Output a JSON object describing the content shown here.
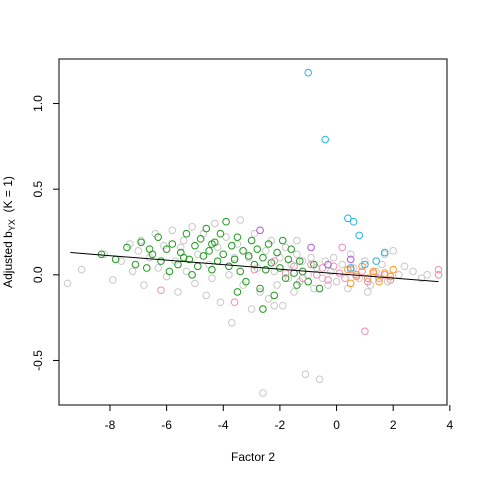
{
  "chart_data": {
    "type": "scatter",
    "xlabel": "Factor 2",
    "ylabel_main": "Adjusted b",
    "ylabel_sub": "YX",
    "ylabel_tail": "  (K = 1)",
    "xlim": [
      -9.8,
      3.9
    ],
    "ylim": [
      -0.76,
      1.26
    ],
    "x_ticks": [
      -8,
      -6,
      -4,
      -2,
      0,
      2,
      4
    ],
    "y_ticks": [
      -0.5,
      0.0,
      0.5,
      1.0
    ],
    "x_tick_labels": [
      "-8",
      "-6",
      "-4",
      "-2",
      "0",
      "2",
      "4"
    ],
    "y_tick_labels": [
      "-0.5",
      "0.0",
      "0.5",
      "1.0"
    ],
    "grid": false,
    "legend": "none",
    "fit_line": {
      "x": [
        -9.4,
        3.6
      ],
      "y": [
        0.13,
        -0.04
      ],
      "color": "#000000"
    },
    "series": [
      {
        "color": "#c8c8c8",
        "points": [
          [
            -9.5,
            -0.05
          ],
          [
            -9.0,
            0.03
          ],
          [
            -8.2,
            0.12
          ],
          [
            -7.9,
            -0.03
          ],
          [
            -7.6,
            0.08
          ],
          [
            -7.3,
            0.18
          ],
          [
            -7.2,
            0.02
          ],
          [
            -7.0,
            0.14
          ],
          [
            -6.8,
            -0.06
          ],
          [
            -6.6,
            0.1
          ],
          [
            -6.4,
            0.24
          ],
          [
            -6.3,
            0.04
          ],
          [
            -6.1,
            0.17
          ],
          [
            -6.0,
            -0.01
          ],
          [
            -5.8,
            0.26
          ],
          [
            -5.7,
            0.08
          ],
          [
            -5.6,
            -0.1
          ],
          [
            -5.4,
            0.2
          ],
          [
            -5.3,
            0.02
          ],
          [
            -5.1,
            0.28
          ],
          [
            -5.0,
            -0.05
          ],
          [
            -4.9,
            0.12
          ],
          [
            -4.7,
            0.24
          ],
          [
            -4.6,
            -0.12
          ],
          [
            -4.5,
            0.06
          ],
          [
            -4.3,
            0.3
          ],
          [
            -4.2,
            0.16
          ],
          [
            -4.1,
            -0.16
          ],
          [
            -3.9,
            0.22
          ],
          [
            -3.8,
            0.0
          ],
          [
            -3.7,
            -0.28
          ],
          [
            -3.5,
            0.18
          ],
          [
            -3.4,
            0.32
          ],
          [
            -3.3,
            -0.06
          ],
          [
            -3.1,
            0.1
          ],
          [
            -3.0,
            -0.2
          ],
          [
            -2.9,
            0.24
          ],
          [
            -2.8,
            0.04
          ],
          [
            -2.7,
            -0.1
          ],
          [
            -2.6,
            -0.69
          ],
          [
            -2.5,
            0.14
          ],
          [
            -2.4,
            -0.14
          ],
          [
            -2.3,
            0.2
          ],
          [
            -2.2,
            0.02
          ],
          [
            -2.1,
            -0.06
          ],
          [
            -2.0,
            0.1
          ],
          [
            -1.9,
            -0.18
          ],
          [
            -1.8,
            0.16
          ],
          [
            -1.7,
            -0.02
          ],
          [
            -1.6,
            0.06
          ],
          [
            -1.5,
            -0.1
          ],
          [
            -1.4,
            0.12
          ],
          [
            -1.3,
            -0.04
          ],
          [
            -1.2,
            0.08
          ],
          [
            -1.1,
            -0.58
          ],
          [
            -1.0,
            0.0
          ],
          [
            -0.9,
            0.1
          ],
          [
            -0.8,
            -0.08
          ],
          [
            -0.7,
            0.04
          ],
          [
            -0.6,
            -0.61
          ],
          [
            -0.5,
            -0.02
          ],
          [
            -0.4,
            0.08
          ],
          [
            -0.3,
            -0.06
          ],
          [
            -0.2,
            0.02
          ],
          [
            -0.1,
            0.1
          ],
          [
            0.0,
            -0.04
          ],
          [
            0.2,
            0.06
          ],
          [
            0.4,
            -0.08
          ],
          [
            0.6,
            0.04
          ],
          [
            0.8,
            -0.02
          ],
          [
            1.0,
            0.08
          ],
          [
            1.2,
            -0.06
          ],
          [
            1.4,
            0.02
          ],
          [
            1.6,
            0.06
          ],
          [
            1.8,
            -0.04
          ],
          [
            2.0,
            0.14
          ],
          [
            2.2,
            0.0
          ],
          [
            2.4,
            0.05
          ],
          [
            2.7,
            0.02
          ],
          [
            3.0,
            -0.02
          ],
          [
            3.2,
            0.0
          ],
          [
            -6.9,
            0.2
          ],
          [
            -5.5,
            0.16
          ],
          [
            -4.4,
            -0.02
          ],
          [
            -3.6,
            0.1
          ],
          [
            -2.2,
            -0.18
          ],
          [
            -1.4,
            0.2
          ],
          [
            0.5,
            0.12
          ],
          [
            1.1,
            -0.1
          ],
          [
            1.7,
            0.12
          ]
        ]
      },
      {
        "color": "#1e9a1e",
        "points": [
          [
            -8.3,
            0.12
          ],
          [
            -7.8,
            0.09
          ],
          [
            -7.4,
            0.16
          ],
          [
            -7.1,
            0.06
          ],
          [
            -6.9,
            0.19
          ],
          [
            -6.7,
            0.04
          ],
          [
            -6.5,
            0.12
          ],
          [
            -6.3,
            0.22
          ],
          [
            -6.2,
            0.08
          ],
          [
            -6.0,
            0.15
          ],
          [
            -5.9,
            0.02
          ],
          [
            -5.8,
            0.18
          ],
          [
            -5.6,
            0.06
          ],
          [
            -5.5,
            0.13
          ],
          [
            -5.3,
            0.24
          ],
          [
            -5.2,
            0.09
          ],
          [
            -5.1,
            0.0
          ],
          [
            -5.0,
            0.17
          ],
          [
            -4.9,
            0.05
          ],
          [
            -4.8,
            0.21
          ],
          [
            -4.7,
            0.11
          ],
          [
            -4.6,
            0.27
          ],
          [
            -4.5,
            0.14
          ],
          [
            -4.4,
            0.03
          ],
          [
            -4.3,
            0.19
          ],
          [
            -4.2,
            0.08
          ],
          [
            -4.1,
            0.24
          ],
          [
            -4.0,
            0.12
          ],
          [
            -3.9,
            0.31
          ],
          [
            -3.8,
            0.05
          ],
          [
            -3.7,
            0.17
          ],
          [
            -3.6,
            0.09
          ],
          [
            -3.5,
            0.22
          ],
          [
            -3.4,
            0.02
          ],
          [
            -3.3,
            0.14
          ],
          [
            -3.2,
            -0.04
          ],
          [
            -3.1,
            0.11
          ],
          [
            -3.0,
            0.2
          ],
          [
            -2.9,
            0.06
          ],
          [
            -2.8,
            0.15
          ],
          [
            -2.7,
            -0.08
          ],
          [
            -2.6,
            0.1
          ],
          [
            -2.5,
            0.03
          ],
          [
            -2.4,
            0.18
          ],
          [
            -2.3,
            0.07
          ],
          [
            -2.2,
            -0.12
          ],
          [
            -2.1,
            0.13
          ],
          [
            -2.0,
            0.04
          ],
          [
            -1.9,
            0.2
          ],
          [
            -1.8,
            -0.02
          ],
          [
            -1.7,
            0.09
          ],
          [
            -1.6,
            0.15
          ],
          [
            -1.5,
            0.01
          ],
          [
            -1.4,
            -0.06
          ],
          [
            -1.3,
            0.08
          ],
          [
            -1.2,
            0.02
          ],
          [
            -1.0,
            -0.04
          ],
          [
            -0.8,
            0.06
          ],
          [
            -0.6,
            -0.08
          ],
          [
            -2.6,
            -0.2
          ],
          [
            -3.5,
            -0.1
          ],
          [
            -4.4,
            0.18
          ],
          [
            -5.4,
            0.1
          ],
          [
            -6.6,
            0.15
          ]
        ]
      },
      {
        "color": "#f08cb4",
        "points": [
          [
            -6.2,
            -0.09
          ],
          [
            -3.6,
            -0.16
          ],
          [
            -2.9,
            0.03
          ],
          [
            -2.2,
            0.08
          ],
          [
            -1.8,
            0.01
          ],
          [
            -1.5,
            0.05
          ],
          [
            -1.2,
            -0.02
          ],
          [
            -0.9,
            0.06
          ],
          [
            -0.7,
            0.0
          ],
          [
            -0.5,
            0.04
          ],
          [
            -0.3,
            -0.03
          ],
          [
            -0.1,
            0.05
          ],
          [
            0.1,
            0.01
          ],
          [
            0.3,
            -0.02
          ],
          [
            0.5,
            0.03
          ],
          [
            0.7,
            -0.01
          ],
          [
            0.9,
            0.02
          ],
          [
            1.1,
            -0.04
          ],
          [
            1.3,
            0.01
          ],
          [
            1.5,
            -0.02
          ],
          [
            1.7,
            0.0
          ],
          [
            1.9,
            -0.03
          ],
          [
            0.2,
            0.16
          ],
          [
            1.0,
            -0.33
          ],
          [
            3.6,
            0.03
          ],
          [
            3.6,
            0.0
          ]
        ]
      },
      {
        "color": "#ff9a1e",
        "points": [
          [
            0.4,
            0.03
          ],
          [
            0.7,
            0.0
          ],
          [
            0.9,
            0.05
          ],
          [
            1.1,
            -0.02
          ],
          [
            1.3,
            0.02
          ],
          [
            1.5,
            -0.04
          ],
          [
            1.7,
            0.01
          ],
          [
            1.9,
            -0.01
          ],
          [
            2.0,
            0.03
          ],
          [
            0.5,
            -0.05
          ]
        ]
      },
      {
        "color": "#29b4e6",
        "points": [
          [
            -1.0,
            1.18
          ],
          [
            -0.4,
            0.79
          ],
          [
            0.4,
            0.33
          ],
          [
            0.6,
            0.31
          ],
          [
            0.8,
            0.23
          ],
          [
            1.0,
            0.06
          ],
          [
            1.4,
            0.08
          ],
          [
            1.7,
            0.13
          ],
          [
            0.5,
            0.04
          ]
        ]
      },
      {
        "color": "#b450e6",
        "points": [
          [
            -2.7,
            0.26
          ],
          [
            -0.9,
            0.16
          ],
          [
            -0.3,
            0.06
          ],
          [
            0.5,
            0.09
          ]
        ]
      }
    ]
  }
}
